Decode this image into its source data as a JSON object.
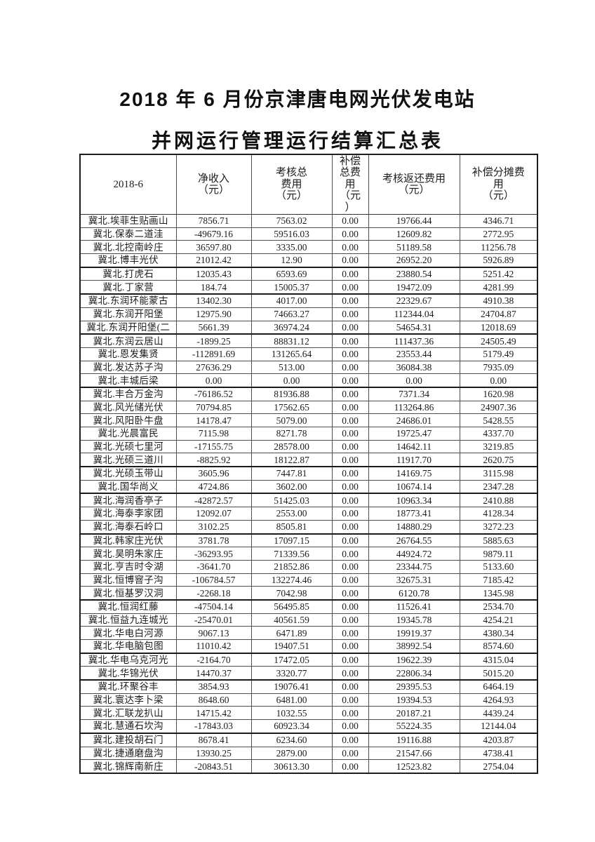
{
  "document": {
    "title_line1": "2018 年 6 月份京津唐电网光伏发电站",
    "title_line2": "并网运行管理运行结算汇总表"
  },
  "colors": {
    "background": "#ffffff",
    "text": "#1c1c1c",
    "border": "#4d4d4d",
    "border_heavy": "#1a1a1a"
  },
  "table": {
    "period_label": "2018-6",
    "headers": [
      {
        "id": "period",
        "label": "2018-6",
        "lines": [
          "2018-6"
        ]
      },
      {
        "id": "net-income",
        "label": "净收入（元）",
        "lines": [
          "净收入",
          "（元）"
        ]
      },
      {
        "id": "assessment-total-fee",
        "label": "考核总费用（元）",
        "lines": [
          "考核总",
          "费用",
          "（元）"
        ]
      },
      {
        "id": "compensation-total-fee",
        "label": "补偿总费用（元）",
        "lines": [
          "补偿",
          "总费",
          "用",
          "（元",
          "）"
        ]
      },
      {
        "id": "assessment-refund-fee",
        "label": "考核返还费用（元）",
        "lines": [
          "考核返还费用",
          "（元）"
        ]
      },
      {
        "id": "compensation-share-fee",
        "label": "补偿分摊费用（元）",
        "lines": [
          "补偿分摊费",
          "用",
          "（元）"
        ]
      }
    ],
    "rows": [
      {
        "name": "冀北.埃菲生贴画山",
        "values": [
          "7856.71",
          "7563.02",
          "0.00",
          "19766.44",
          "4346.71"
        ]
      },
      {
        "name": "冀北.保泰二道洼",
        "values": [
          "-49679.16",
          "59516.03",
          "0.00",
          "12609.82",
          "2772.95"
        ]
      },
      {
        "name": "冀北.北控南岭庄",
        "values": [
          "36597.80",
          "3335.00",
          "0.00",
          "51189.58",
          "11256.78"
        ]
      },
      {
        "name": "冀北.博丰光伏",
        "values": [
          "21012.42",
          "12.90",
          "0.00",
          "26952.20",
          "5926.89"
        ],
        "thick_bottom": true
      },
      {
        "name": "冀北.打虎石",
        "values": [
          "12035.43",
          "6593.69",
          "0.00",
          "23880.54",
          "5251.42"
        ]
      },
      {
        "name": "冀北.丁家营",
        "values": [
          "184.74",
          "15005.37",
          "0.00",
          "19472.09",
          "4281.99"
        ],
        "thick_bottom": true
      },
      {
        "name": "冀北.东润环能蒙古",
        "values": [
          "13402.30",
          "4017.00",
          "0.00",
          "22329.67",
          "4910.38"
        ]
      },
      {
        "name": "冀北.东润开阳堡",
        "values": [
          "12975.90",
          "74663.27",
          "0.00",
          "112344.04",
          "24704.87"
        ]
      },
      {
        "name": "冀北.东润开阳堡(二",
        "values": [
          "5661.39",
          "36974.24",
          "0.00",
          "54654.31",
          "12018.69"
        ],
        "thick_bottom": true
      },
      {
        "name": "冀北.东润云居山",
        "values": [
          "-1899.25",
          "88831.12",
          "0.00",
          "111437.36",
          "24505.49"
        ]
      },
      {
        "name": "冀北.恩发集贤",
        "values": [
          "-112891.69",
          "131265.64",
          "0.00",
          "23553.44",
          "5179.49"
        ]
      },
      {
        "name": "冀北.发达苏子沟",
        "values": [
          "27636.29",
          "513.00",
          "0.00",
          "36084.38",
          "7935.09"
        ]
      },
      {
        "name": "冀北.丰城后梁",
        "values": [
          "0.00",
          "0.00",
          "0.00",
          "0.00",
          "0.00"
        ],
        "thick_bottom": true
      },
      {
        "name": "冀北.丰合万金沟",
        "values": [
          "-76186.52",
          "81936.88",
          "0.00",
          "7371.34",
          "1620.98"
        ]
      },
      {
        "name": "冀北.风光储光伏",
        "values": [
          "70794.85",
          "17562.65",
          "0.00",
          "113264.86",
          "24907.36"
        ]
      },
      {
        "name": "冀北.风阳卧牛盘",
        "values": [
          "14178.47",
          "5079.00",
          "0.00",
          "24686.01",
          "5428.55"
        ]
      },
      {
        "name": "冀北.光晨富民",
        "values": [
          "7115.98",
          "8271.78",
          "0.00",
          "19725.47",
          "4337.70"
        ]
      },
      {
        "name": "冀北.光硕七里河",
        "values": [
          "-17155.75",
          "28578.00",
          "0.00",
          "14642.11",
          "3219.85"
        ]
      },
      {
        "name": "冀北.光硕三道川",
        "values": [
          "-8825.92",
          "18122.87",
          "0.00",
          "11917.70",
          "2620.75"
        ],
        "thick_bottom": true
      },
      {
        "name": "冀北.光硕玉带山",
        "values": [
          "3605.96",
          "7447.81",
          "0.00",
          "14169.75",
          "3115.98"
        ]
      },
      {
        "name": "冀北.国华尚义",
        "values": [
          "4724.86",
          "3602.00",
          "0.00",
          "10674.14",
          "2347.28"
        ],
        "thick_bottom": true
      },
      {
        "name": "冀北.海润香亭子",
        "values": [
          "-42872.57",
          "51425.03",
          "0.00",
          "10963.34",
          "2410.88"
        ]
      },
      {
        "name": "冀北.海泰李家团",
        "values": [
          "12092.07",
          "2553.00",
          "0.00",
          "18773.41",
          "4128.34"
        ]
      },
      {
        "name": "冀北.海泰石岭口",
        "values": [
          "3102.25",
          "8505.81",
          "0.00",
          "14880.29",
          "3272.23"
        ],
        "thick_bottom": true
      },
      {
        "name": "冀北.韩家庄光伏",
        "values": [
          "3781.78",
          "17097.15",
          "0.00",
          "26764.55",
          "5885.63"
        ]
      },
      {
        "name": "冀北.昊明朱家庄",
        "values": [
          "-36293.95",
          "71339.56",
          "0.00",
          "44924.72",
          "9879.11"
        ]
      },
      {
        "name": "冀北.亨吉时令湖",
        "values": [
          "-3641.70",
          "21852.86",
          "0.00",
          "23344.75",
          "5133.60"
        ]
      },
      {
        "name": "冀北.恒博窨子沟",
        "values": [
          "-106784.57",
          "132274.46",
          "0.00",
          "32675.31",
          "7185.42"
        ]
      },
      {
        "name": "冀北.恒基罗汉洞",
        "values": [
          "-2268.18",
          "7042.98",
          "0.00",
          "6120.78",
          "1345.98"
        ],
        "thick_bottom": true
      },
      {
        "name": "冀北.恒润红藤",
        "values": [
          "-47504.14",
          "56495.85",
          "0.00",
          "11526.41",
          "2534.70"
        ]
      },
      {
        "name": "冀北.恒益九连城光",
        "values": [
          "-25470.01",
          "40561.59",
          "0.00",
          "19345.78",
          "4254.21"
        ]
      },
      {
        "name": "冀北.华电白河源",
        "values": [
          "9067.13",
          "6471.89",
          "0.00",
          "19919.37",
          "4380.34"
        ]
      },
      {
        "name": "冀北.华电脑包图",
        "values": [
          "11010.42",
          "19407.51",
          "0.00",
          "38992.54",
          "8574.60"
        ],
        "thick_bottom": true
      },
      {
        "name": "冀北.华电乌克河光",
        "values": [
          "-2164.70",
          "17472.05",
          "0.00",
          "19622.39",
          "4315.04"
        ]
      },
      {
        "name": "冀北.华锦光伏",
        "values": [
          "14470.37",
          "3320.77",
          "0.00",
          "22806.34",
          "5015.20"
        ],
        "thick_bottom": true
      },
      {
        "name": "冀北.环聚谷丰",
        "values": [
          "3854.93",
          "19076.41",
          "0.00",
          "29395.53",
          "6464.19"
        ]
      },
      {
        "name": "冀北.寰达李卜梁",
        "values": [
          "8648.60",
          "6481.00",
          "0.00",
          "19394.53",
          "4264.93"
        ]
      },
      {
        "name": "冀北.汇联龙扒山",
        "values": [
          "14715.42",
          "1032.55",
          "0.00",
          "20187.21",
          "4439.24"
        ]
      },
      {
        "name": "冀北.慧通石坎沟",
        "values": [
          "-17843.03",
          "60923.34",
          "0.00",
          "55224.35",
          "12144.04"
        ],
        "thick_bottom": true
      },
      {
        "name": "冀北.建投胡石门",
        "values": [
          "8678.41",
          "6234.60",
          "0.00",
          "19116.88",
          "4203.87"
        ]
      },
      {
        "name": "冀北.捷通磨盘沟",
        "values": [
          "13930.25",
          "2879.00",
          "0.00",
          "21547.66",
          "4738.41"
        ]
      },
      {
        "name": "冀北.锦辉南新庄",
        "values": [
          "-20843.51",
          "30613.30",
          "0.00",
          "12523.82",
          "2754.04"
        ]
      }
    ]
  }
}
